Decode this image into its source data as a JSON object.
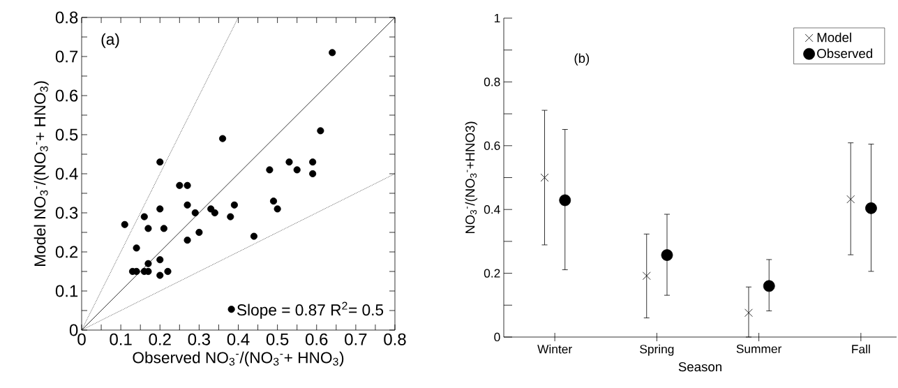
{
  "chart_data": [
    {
      "type": "scatter",
      "xlabel": "Observed NO$_{3}$$^{-}$/(NO$_{3}$$^{-}$+ HNO$_{3}$)",
      "ylabel": "Model  NO$_{3}$$^{-}$/(NO$_{3}$$^{-}$+ HNO$_{3}$)",
      "annotations": [
        "(a)"
      ],
      "legend": "bottom right",
      "xlim": [
        0,
        0.8
      ],
      "ylim": [
        0,
        0.8
      ],
      "xticks": [
        0,
        {
          "value": 0.05,
          "label": null
        },
        0.1,
        {
          "value": 0.15,
          "label": null
        },
        0.2,
        {
          "value": 0.25,
          "label": null
        },
        0.3,
        {
          "value": 0.35,
          "label": null
        },
        0.4,
        {
          "value": 0.45,
          "label": null
        },
        0.5,
        {
          "value": 0.55,
          "label": null
        },
        0.6,
        {
          "value": 0.65,
          "label": null
        },
        0.7,
        {
          "value": 0.75,
          "label": null
        },
        0.8
      ],
      "yticks": [
        0,
        {
          "value": 0.05,
          "label": null
        },
        0.1,
        {
          "value": 0.15,
          "label": null
        },
        0.2,
        {
          "value": 0.25,
          "label": null
        },
        0.3,
        {
          "value": 0.35,
          "label": null
        },
        0.4,
        {
          "value": 0.45,
          "label": null
        },
        0.5,
        {
          "value": 0.55,
          "label": null
        },
        0.6,
        {
          "value": 0.65,
          "label": null
        },
        0.7,
        {
          "value": 0.75,
          "label": null
        },
        0.8
      ],
      "series": [
        {
          "type": "scatter",
          "name": "Slope = 0.87   R$^{2}$= 0.5",
          "color": "#000000",
          "marker": "circle",
          "x": [
            0.64,
            0.61,
            0.36,
            0.2,
            0.53,
            0.59,
            0.55,
            0.48,
            0.59,
            0.25,
            0.27,
            0.27,
            0.39,
            0.2,
            0.33,
            0.49,
            0.5,
            0.16,
            0.29,
            0.34,
            0.38,
            0.11,
            0.17,
            0.21,
            0.3,
            0.44,
            0.27,
            0.14,
            0.2,
            0.17,
            0.13,
            0.14,
            0.16,
            0.17,
            0.2,
            0.22
          ],
          "values": [
            0.71,
            0.51,
            0.49,
            0.43,
            0.43,
            0.43,
            0.41,
            0.41,
            0.4,
            0.37,
            0.37,
            0.32,
            0.32,
            0.31,
            0.31,
            0.33,
            0.31,
            0.29,
            0.3,
            0.3,
            0.29,
            0.27,
            0.26,
            0.26,
            0.25,
            0.24,
            0.23,
            0.21,
            0.18,
            0.17,
            0.15,
            0.15,
            0.15,
            0.15,
            0.14,
            0.15
          ]
        },
        {
          "type": "line",
          "color": "#000000",
          "line_style": "solid",
          "x": [
            0,
            0.8
          ],
          "values": [
            0,
            0.8
          ]
        },
        {
          "type": "line",
          "color": "#000000",
          "line_style": "dotted",
          "x": [
            0,
            0.4
          ],
          "values": [
            0,
            0.8
          ]
        },
        {
          "type": "line",
          "color": "#000000",
          "line_style": "dotted",
          "x": [
            0,
            0.8
          ],
          "values": [
            0,
            0.4
          ]
        }
      ]
    },
    {
      "type": "scatter",
      "xlabel": "Season",
      "ylabel": "NO$_{3}$$^{-}$/(NO$_{3}$$^{-}$+HNO3)",
      "annotations": [
        "(b)"
      ],
      "legend": "top right",
      "categories": [
        "Winter",
        "Spring",
        "Summer",
        "Fall"
      ],
      "ylim": [
        0,
        1
      ],
      "yticks": [
        0,
        {
          "value": 0.1,
          "label": null
        },
        0.2,
        {
          "value": 0.3,
          "label": null
        },
        0.4,
        {
          "value": 0.5,
          "label": null
        },
        0.6,
        {
          "value": 0.7,
          "label": null
        },
        0.8,
        {
          "value": 0.9,
          "label": null
        },
        1
      ],
      "series": [
        {
          "name": "Model",
          "color": "#000000",
          "marker": "cross",
          "values": [
            0.5,
            0.192,
            0.076,
            0.432
          ],
          "errors": [
            [
              0.289,
              0.711
            ],
            [
              0.06,
              0.323
            ],
            [
              0,
              0.157
            ],
            [
              0.258,
              0.609
            ]
          ]
        },
        {
          "name": "Observed",
          "color": "#000000",
          "marker": "circle",
          "values": [
            0.429,
            0.257,
            0.16,
            0.404
          ],
          "errors": [
            [
              0.211,
              0.651
            ],
            [
              0.131,
              0.385
            ],
            [
              0.082,
              0.243
            ],
            [
              0.206,
              0.605
            ]
          ]
        }
      ]
    }
  ]
}
